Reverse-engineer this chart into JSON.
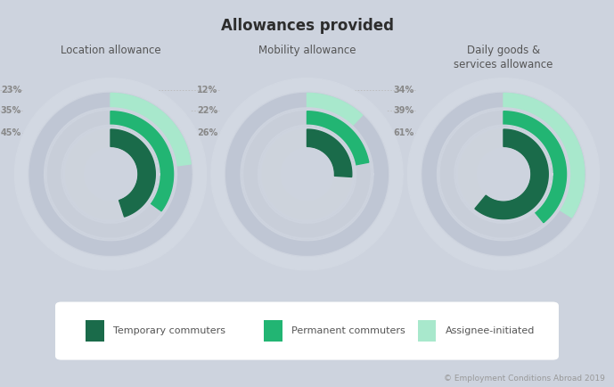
{
  "title": "Allowances provided",
  "background_color": "#cdd3de",
  "charts": [
    {
      "label": "Location allowance",
      "pct_outer": 23,
      "pct_mid": 35,
      "pct_inner": 45,
      "labels_top_to_bottom": [
        "23%",
        "35%",
        "45%"
      ]
    },
    {
      "label": "Mobility allowance",
      "pct_outer": 12,
      "pct_mid": 22,
      "pct_inner": 26,
      "labels_top_to_bottom": [
        "12%",
        "22%",
        "26%"
      ]
    },
    {
      "label": "Daily goods &\nservices allowance",
      "pct_outer": 34,
      "pct_mid": 39,
      "pct_inner": 61,
      "labels_top_to_bottom": [
        "34%",
        "39%",
        "61%"
      ]
    }
  ],
  "color_inner": "#1a6b4a",
  "color_mid": "#22b573",
  "color_outer": "#a8e8cc",
  "color_ring_bg": "#bfc6d4",
  "color_ring_bg2": "#c8ced9",
  "color_ring_bg3": "#d0d6e0",
  "legend": [
    {
      "label": "Temporary commuters",
      "color": "#1a6b4a"
    },
    {
      "label": "Permanent commuters",
      "color": "#22b573"
    },
    {
      "label": "Assignee-initiated",
      "color": "#a8e8cc"
    }
  ],
  "copyright": "© Employment Conditions Abroad 2019"
}
